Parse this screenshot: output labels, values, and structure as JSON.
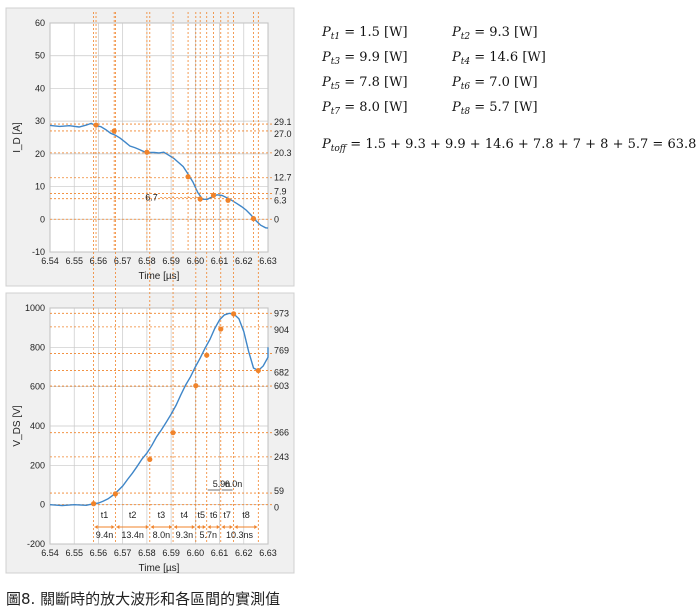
{
  "chart_data": [
    {
      "type": "line",
      "xlabel": "Time [µs]",
      "ylabel": "I_D [A]",
      "xlim": [
        6.54,
        6.63
      ],
      "ylim": [
        -10,
        60
      ],
      "x_ticks": [
        "6.54",
        "6.55",
        "6.56",
        "6.57",
        "6.58",
        "6.59",
        "6.60",
        "6.61",
        "6.62",
        "6.63"
      ],
      "y_ticks": [
        "-10",
        "0",
        "10",
        "20",
        "30",
        "40",
        "50",
        "60"
      ],
      "grid": true,
      "series": [
        {
          "x": [
            6.54,
            6.544,
            6.548,
            6.552,
            6.555,
            6.557,
            6.559,
            6.561,
            6.563,
            6.565,
            6.567,
            6.569,
            6.571,
            6.573,
            6.575,
            6.577,
            6.579,
            6.581,
            6.583,
            6.585,
            6.587,
            6.589,
            6.591,
            6.593,
            6.595,
            6.597,
            6.599,
            6.601,
            6.603,
            6.605,
            6.607,
            6.609,
            6.611,
            6.613,
            6.615,
            6.617,
            6.619,
            6.621,
            6.623,
            6.625,
            6.627,
            6.629,
            6.631
          ],
          "y": [
            28.7,
            28.4,
            28.6,
            28.2,
            28.8,
            29.3,
            28.6,
            28.3,
            27.4,
            26.3,
            25.7,
            24.8,
            23.6,
            22.4,
            21.9,
            21.3,
            20.6,
            20.4,
            20.4,
            20.3,
            20.5,
            19.6,
            18.7,
            17.4,
            16.1,
            13.8,
            11.4,
            8.2,
            6.1,
            6.1,
            6.9,
            7.5,
            7.3,
            6.6,
            5.8,
            4.9,
            3.9,
            2.8,
            1.3,
            -0.4,
            -1.8,
            -2.6,
            -2.7
          ]
        }
      ],
      "markers": [
        {
          "x": 6.559,
          "y": 28.8
        },
        {
          "x": 6.5665,
          "y": 27.0
        },
        {
          "x": 6.58,
          "y": 20.5
        },
        {
          "x": 6.597,
          "y": 13.0
        },
        {
          "x": 6.602,
          "y": 6.2
        },
        {
          "x": 6.6075,
          "y": 7.3
        },
        {
          "x": 6.6135,
          "y": 5.8
        },
        {
          "x": 6.624,
          "y": 0.2
        }
      ],
      "right_labels": [
        "29.1",
        "27.0",
        "20.3",
        "12.7",
        "7.9",
        "6.3",
        "0"
      ],
      "right_label_values": [
        29.1,
        27.0,
        20.3,
        12.7,
        7.9,
        6.3,
        0
      ],
      "annotation": "6.7"
    },
    {
      "type": "line",
      "xlabel": "Time [µs]",
      "ylabel": "V_DS [V]",
      "xlim": [
        6.54,
        6.63
      ],
      "ylim": [
        -200,
        1000
      ],
      "x_ticks": [
        "6.54",
        "6.55",
        "6.56",
        "6.57",
        "6.58",
        "6.59",
        "6.60",
        "6.61",
        "6.62",
        "6.63"
      ],
      "y_ticks": [
        "-200",
        "0",
        "200",
        "400",
        "600",
        "800",
        "1000"
      ],
      "grid": true,
      "series": [
        {
          "x": [
            6.54,
            6.545,
            6.55,
            6.555,
            6.558,
            6.56,
            6.562,
            6.564,
            6.566,
            6.568,
            6.57,
            6.572,
            6.574,
            6.576,
            6.578,
            6.58,
            6.582,
            6.584,
            6.586,
            6.588,
            6.59,
            6.592,
            6.594,
            6.596,
            6.598,
            6.6,
            6.602,
            6.604,
            6.606,
            6.608,
            6.61,
            6.612,
            6.614,
            6.616,
            6.618,
            6.62,
            6.622,
            6.624,
            6.626,
            6.628,
            6.63,
            6.632
          ],
          "y": [
            0,
            -5,
            0,
            -3,
            5,
            8,
            18,
            30,
            48,
            70,
            95,
            128,
            160,
            195,
            232,
            262,
            300,
            345,
            380,
            420,
            460,
            505,
            558,
            608,
            650,
            700,
            745,
            795,
            840,
            895,
            940,
            965,
            973,
            968,
            945,
            880,
            780,
            695,
            682,
            705,
            750,
            800
          ]
        }
      ],
      "markers": [
        {
          "x": 6.558,
          "y": 5
        },
        {
          "x": 6.567,
          "y": 55
        },
        {
          "x": 6.5812,
          "y": 230
        },
        {
          "x": 6.5908,
          "y": 366
        },
        {
          "x": 6.6002,
          "y": 605
        },
        {
          "x": 6.6047,
          "y": 760
        },
        {
          "x": 6.6105,
          "y": 893
        },
        {
          "x": 6.6158,
          "y": 970
        },
        {
          "x": 6.626,
          "y": 682
        }
      ],
      "right_labels": [
        "973",
        "904",
        "769",
        "682",
        "603",
        "366",
        "243",
        "59",
        "0"
      ],
      "right_label_values": [
        973,
        904,
        769,
        682,
        603,
        366,
        243,
        59,
        0
      ],
      "interval_labels": [
        "t1",
        "t2",
        "t3",
        "t4",
        "t5",
        "t6",
        "t7",
        "t8"
      ],
      "duration_labels": [
        "9.4n",
        "13.4n",
        "8.0n",
        "9.3n",
        "5.7n",
        "10.3ns"
      ],
      "top_duration_labels": [
        "5.9n",
        "6.0n"
      ]
    }
  ],
  "equations": {
    "rows": [
      [
        "Pt1 = 1.5 [W]",
        "Pt2 = 9.3 [W]"
      ],
      [
        "Pt3 = 9.9 [W]",
        "Pt4 = 14.6 [W]"
      ],
      [
        "Pt5 = 7.8 [W]",
        "Pt6 = 7.0 [W]"
      ],
      [
        "Pt7 = 8.0 [W]",
        "Pt8 = 5.7 [W]"
      ]
    ],
    "total": "Ptoff = 1.5 + 9.3 + 9.9 + 14.6 + 7.8 + 7 + 8 + 5.7 = 63.8 [W]"
  },
  "caption": "圖8. 關斷時的放大波形和各區間的實測值",
  "colors": {
    "line": "#3f86c8",
    "marker": "#f0832a",
    "guide": "#f0832a",
    "grid": "#c8c8c8",
    "panel": "#f0f0f0"
  }
}
